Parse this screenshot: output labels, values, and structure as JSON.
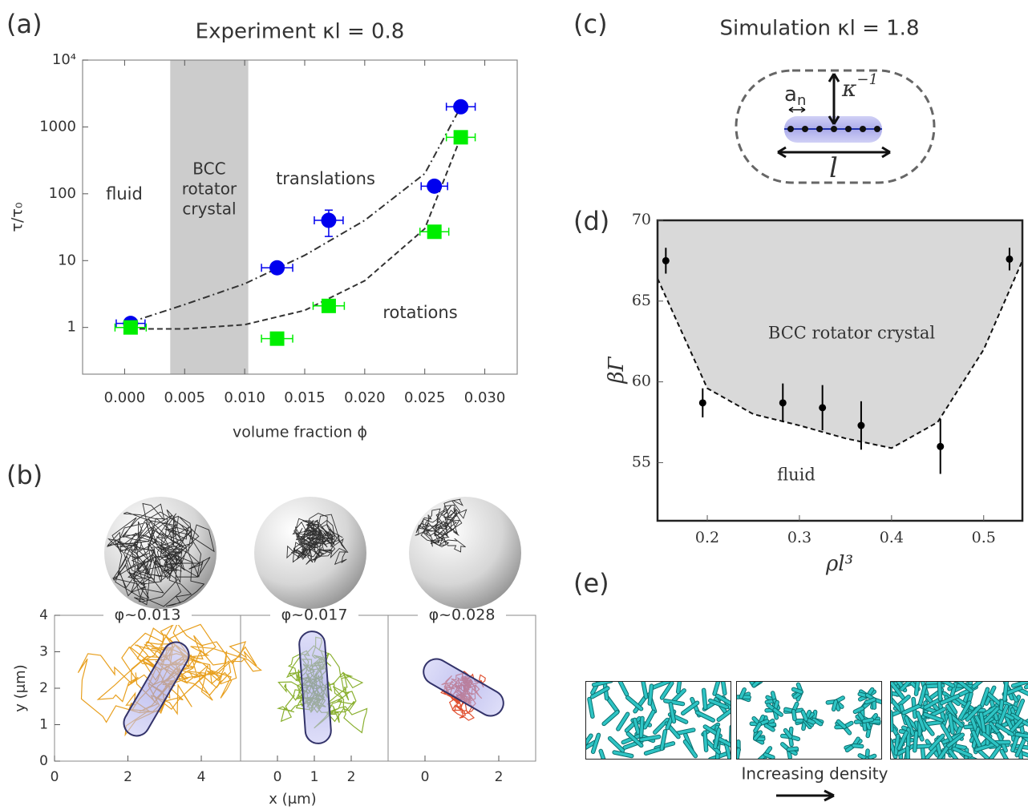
{
  "panel_labels": [
    "(a)",
    "(b)",
    "(c)",
    "(d)",
    "(e)"
  ],
  "chart_data": [
    {
      "type": "scatter",
      "title": "Experiment κl = 0.8",
      "x_label": "volume fraction ϕ",
      "y_label": "τ/τ₀",
      "log_y": true,
      "xlim": [
        -0.0035,
        0.0327
      ],
      "ylim": [
        0.2,
        10000
      ],
      "xticks": [
        {
          "value": 0,
          "label": "0.000"
        },
        {
          "value": 0.005,
          "label": "0.005"
        },
        {
          "value": 0.01,
          "label": "0.010"
        },
        {
          "value": 0.015,
          "label": "0.015"
        },
        {
          "value": 0.02,
          "label": "0.020"
        },
        {
          "value": 0.025,
          "label": "0.025"
        },
        {
          "value": 0.03,
          "label": "0.030"
        }
      ],
      "yticks": [
        1,
        10,
        100,
        1000,
        {
          "value": 10000,
          "label": "10⁴"
        }
      ],
      "shaded_region": {
        "x": [
          0.0038,
          0.0103
        ],
        "color": "#cccccc",
        "label": [
          "BCC",
          "rotator",
          "crystal"
        ]
      },
      "annotations": [
        "fluid",
        "translations",
        "rotations"
      ],
      "series": [
        {
          "marker": "circle",
          "color": "#0000ee",
          "x": [
            0.0005,
            0.0127,
            0.017,
            0.0258,
            0.028
          ],
          "values": [
            1.15,
            7.8,
            40,
            130,
            2000
          ],
          "x_errors": [
            0.0012,
            0.0013,
            0.0012,
            0.0011,
            0.0012
          ],
          "y_errors": [
            null,
            null,
            17,
            null,
            null
          ]
        },
        {
          "marker": "square",
          "color": "#00ee00",
          "x": [
            0.0005,
            0.0127,
            0.017,
            0.0258,
            0.028
          ],
          "values": [
            1.0,
            0.68,
            2.1,
            27,
            700
          ],
          "x_errors": [
            0.0013,
            0.0013,
            0.0013,
            0.0012,
            0.0012
          ],
          "y_errors": [
            null,
            null,
            null,
            null,
            null
          ]
        },
        {
          "marker": null,
          "dash": "9 4 2 4",
          "color": "#333333",
          "x": [
            0.0005,
            0.005,
            0.01,
            0.015,
            0.02,
            0.025,
            0.028
          ],
          "values": [
            1.2,
            2.2,
            4.5,
            12,
            40,
            200,
            2000
          ]
        },
        {
          "marker": null,
          "dash": "7 4",
          "color": "#333333",
          "x": [
            0.0005,
            0.005,
            0.01,
            0.015,
            0.02,
            0.025,
            0.028
          ],
          "values": [
            0.95,
            0.95,
            1.1,
            1.8,
            5,
            30,
            700
          ]
        }
      ]
    },
    {
      "type": "trajectory",
      "title": "φ~0.013",
      "y_label": "y (μm)",
      "color": "#e8a020",
      "xlim": [
        0,
        5.07
      ],
      "ylim": [
        0,
        4
      ],
      "xticks": [
        0,
        2,
        4
      ],
      "yticks": [
        0,
        1,
        2,
        3,
        4
      ]
    },
    {
      "type": "trajectory",
      "title": "φ~0.017",
      "x_label": "x (μm)",
      "color": "#8ab030",
      "xlim": [
        -1,
        3
      ],
      "ylim": [
        0,
        4
      ],
      "xticks": [
        0,
        1,
        2
      ]
    },
    {
      "type": "trajectory",
      "title": "φ~0.028",
      "color": "#e05030",
      "xlim": [
        -1,
        3
      ],
      "ylim": [
        0,
        4
      ],
      "xticks": [
        0,
        2
      ]
    },
    {
      "type": "scatter",
      "x_label": "ρl³",
      "y_label": "βΓ",
      "xlim": [
        0.146,
        0.542
      ],
      "ylim": [
        51.4,
        70
      ],
      "xticks": [
        0.2,
        0.3,
        0.4,
        0.5
      ],
      "yticks": [
        55,
        60,
        65,
        70
      ],
      "annotations": [
        "BCC rotator crystal",
        "fluid"
      ],
      "series": [
        {
          "marker": "dot",
          "color": "#000000",
          "x": [
            0.155,
            0.195,
            0.282,
            0.325,
            0.367,
            0.453,
            0.528
          ],
          "values": [
            67.5,
            58.7,
            58.7,
            58.4,
            57.3,
            56.0,
            67.6
          ],
          "y_errors": [
            0.8,
            0.9,
            1.2,
            1.4,
            1.5,
            1.7,
            0.7
          ]
        },
        {
          "marker": null,
          "dash": "6 4",
          "color": "#111111",
          "fill_above": "#d9d9d9",
          "x": [
            0.146,
            0.2,
            0.25,
            0.3,
            0.35,
            0.4,
            0.45,
            0.5,
            0.542
          ],
          "values": [
            66.4,
            59.6,
            58.0,
            57.3,
            56.5,
            55.9,
            57.5,
            62,
            67.5
          ]
        }
      ]
    }
  ],
  "diagram": {
    "title": "Simulation κl = 1.8",
    "a": "a",
    "n": "n",
    "kappa": "κ",
    "exponent": "−1",
    "l": "l"
  },
  "panel_e": {
    "caption": "Increasing density"
  }
}
